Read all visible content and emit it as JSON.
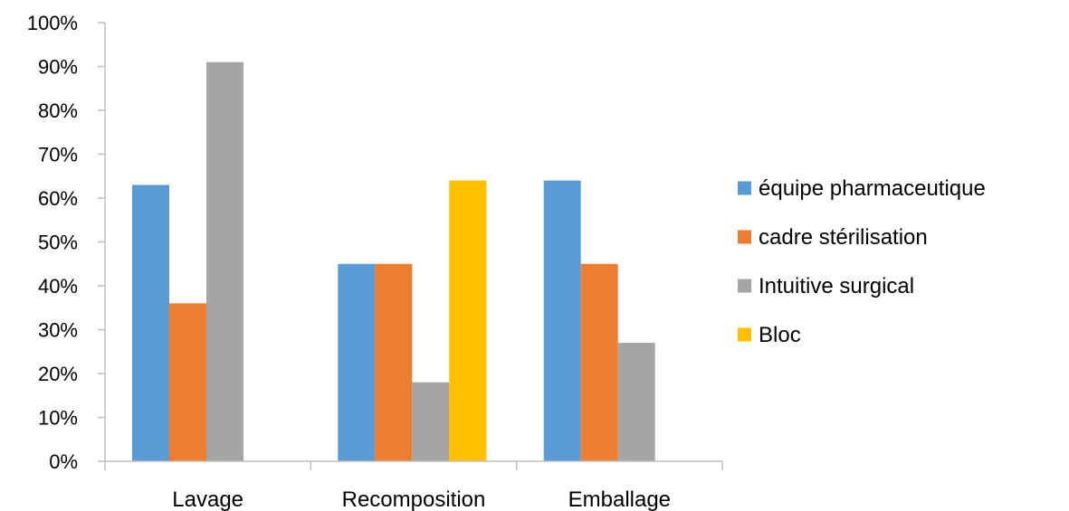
{
  "chart_data": {
    "type": "bar",
    "categories": [
      "Lavage",
      "Recomposition",
      "Emballage"
    ],
    "series": [
      {
        "name": "équipe pharmaceutique",
        "color": "#5b9bd5",
        "values": [
          63,
          45,
          64
        ]
      },
      {
        "name": "cadre stérilisation",
        "color": "#ed7d31",
        "values": [
          36,
          45,
          45
        ]
      },
      {
        "name": "Intuitive surgical",
        "color": "#a5a5a5",
        "values": [
          91,
          18,
          27
        ]
      },
      {
        "name": "Bloc",
        "color": "#ffc000",
        "values": [
          null,
          64,
          null
        ]
      }
    ],
    "y_ticks": [
      "0%",
      "10%",
      "20%",
      "30%",
      "40%",
      "50%",
      "60%",
      "70%",
      "80%",
      "90%",
      "100%"
    ],
    "ylim": [
      0,
      100
    ],
    "y_unit": "%",
    "grid": false,
    "legend_position": "right"
  }
}
